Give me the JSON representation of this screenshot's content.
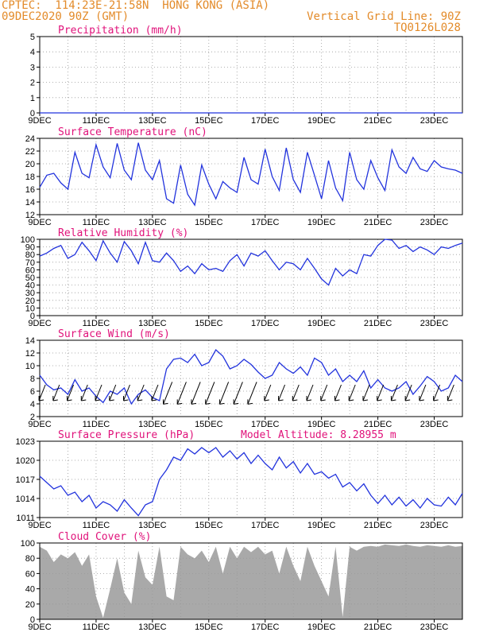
{
  "header": {
    "line1_left": "CPTEC:  114:23E-21:58N  HONG KONG (ASIA)",
    "line2_left": "09DEC2020 90Z (GMT)",
    "line2_right": "Vertical Grid Line: 90Z",
    "line3_right": "TQ0126L028"
  },
  "colors": {
    "line": "#2233dd",
    "title": "#e0127a",
    "header": "#e38b2a",
    "cloud": "#a9a9a9",
    "grid": "#999999"
  },
  "x_ticks": [
    "9DEC",
    "11DEC",
    "13DEC",
    "15DEC",
    "17DEC",
    "19DEC",
    "21DEC",
    "23DEC"
  ],
  "chart_data": [
    {
      "type": "line",
      "title": "Precipitation (mm/h)",
      "ylim": [
        0,
        5
      ],
      "yticks": [
        0,
        1,
        2,
        3,
        4,
        5
      ],
      "x_days": [
        0,
        15
      ],
      "series": [
        {
          "x": [
            0,
            15
          ],
          "values": [
            0,
            0
          ]
        }
      ]
    },
    {
      "type": "line",
      "title": "Surface Temperature (nC)",
      "ylim": [
        12,
        24
      ],
      "yticks": [
        12,
        14,
        16,
        18,
        20,
        22,
        24
      ],
      "x_days": [
        0,
        15
      ],
      "series": [
        {
          "x": [
            0,
            0.25,
            0.5,
            0.75,
            1.0,
            1.25,
            1.5,
            1.75,
            2.0,
            2.25,
            2.5,
            2.75,
            3.0,
            3.25,
            3.5,
            3.75,
            4.0,
            4.25,
            4.5,
            4.75,
            5.0,
            5.25,
            5.5,
            5.75,
            6.0,
            6.25,
            6.5,
            6.75,
            7.0,
            7.25,
            7.5,
            7.75,
            8.0,
            8.25,
            8.5,
            8.75,
            9.0,
            9.25,
            9.5,
            9.75,
            10.0,
            10.25,
            10.5,
            10.75,
            11.0,
            11.25,
            11.5,
            11.75,
            12.0,
            12.25,
            12.5,
            12.75,
            13.0,
            13.25,
            13.5,
            13.75,
            14.0,
            14.25,
            14.5,
            14.75,
            15.0
          ],
          "values": [
            16.3,
            18.2,
            18.5,
            17.0,
            16.0,
            21.8,
            18.5,
            17.8,
            23.0,
            19.5,
            17.8,
            23.2,
            19.0,
            17.5,
            23.3,
            19.0,
            17.5,
            20.5,
            14.5,
            13.8,
            19.8,
            15.2,
            13.5,
            19.8,
            16.8,
            14.5,
            17.2,
            16.2,
            15.5,
            21.0,
            17.5,
            16.8,
            22.3,
            18.0,
            15.8,
            22.5,
            17.5,
            15.5,
            21.8,
            18.2,
            14.5,
            20.5,
            16.2,
            14.2,
            21.8,
            17.5,
            16.0,
            20.5,
            17.8,
            15.8,
            22.2,
            19.5,
            18.5,
            21.0,
            19.2,
            18.8,
            20.5,
            19.5,
            19.2,
            19.0,
            18.5
          ]
        }
      ]
    },
    {
      "type": "line",
      "title": "Relative Humidity (%)",
      "ylim": [
        0,
        100
      ],
      "yticks": [
        0,
        10,
        20,
        30,
        40,
        50,
        60,
        70,
        80,
        90,
        100
      ],
      "x_days": [
        0,
        15
      ],
      "series": [
        {
          "x": [
            0,
            0.25,
            0.5,
            0.75,
            1.0,
            1.25,
            1.5,
            1.75,
            2.0,
            2.25,
            2.5,
            2.75,
            3.0,
            3.25,
            3.5,
            3.75,
            4.0,
            4.25,
            4.5,
            4.75,
            5.0,
            5.25,
            5.5,
            5.75,
            6.0,
            6.25,
            6.5,
            6.75,
            7.0,
            7.25,
            7.5,
            7.75,
            8.0,
            8.25,
            8.5,
            8.75,
            9.0,
            9.25,
            9.5,
            9.75,
            10.0,
            10.25,
            10.5,
            10.75,
            11.0,
            11.25,
            11.5,
            11.75,
            12.0,
            12.25,
            12.5,
            12.75,
            13.0,
            13.25,
            13.5,
            13.75,
            14.0,
            14.25,
            14.5,
            14.75,
            15.0
          ],
          "values": [
            78,
            82,
            88,
            92,
            75,
            80,
            96,
            85,
            72,
            98,
            82,
            70,
            97,
            85,
            68,
            96,
            72,
            70,
            82,
            72,
            58,
            65,
            55,
            68,
            60,
            62,
            58,
            72,
            80,
            65,
            82,
            78,
            85,
            72,
            60,
            70,
            68,
            60,
            75,
            62,
            48,
            40,
            62,
            52,
            60,
            55,
            80,
            78,
            92,
            100,
            99,
            88,
            92,
            84,
            90,
            86,
            80,
            90,
            88,
            92,
            95
          ]
        }
      ]
    },
    {
      "type": "line",
      "title": "Surface Wind (m/s)",
      "ylim": [
        2,
        14
      ],
      "yticks": [
        2,
        4,
        6,
        8,
        10,
        12,
        14
      ],
      "x_days": [
        0,
        15
      ],
      "series": [
        {
          "x": [
            0,
            0.25,
            0.5,
            0.75,
            1.0,
            1.25,
            1.5,
            1.75,
            2.0,
            2.25,
            2.5,
            2.75,
            3.0,
            3.25,
            3.5,
            3.75,
            4.0,
            4.25,
            4.5,
            4.75,
            5.0,
            5.25,
            5.5,
            5.75,
            6.0,
            6.25,
            6.5,
            6.75,
            7.0,
            7.25,
            7.5,
            7.75,
            8.0,
            8.25,
            8.5,
            8.75,
            9.0,
            9.25,
            9.5,
            9.75,
            10.0,
            10.25,
            10.5,
            10.75,
            11.0,
            11.25,
            11.5,
            11.75,
            12.0,
            12.25,
            12.5,
            12.75,
            13.0,
            13.25,
            13.5,
            13.75,
            14.0,
            14.25,
            14.5,
            14.75,
            15.0
          ],
          "values": [
            8.5,
            7.0,
            6.2,
            6.5,
            5.5,
            7.8,
            6.0,
            6.5,
            5.2,
            4.2,
            6.0,
            5.5,
            6.5,
            4.0,
            5.5,
            6.2,
            5.0,
            4.5,
            9.5,
            11.0,
            11.2,
            10.5,
            11.8,
            10.0,
            10.5,
            12.5,
            11.5,
            9.5,
            10.0,
            11.0,
            10.2,
            9.0,
            8.0,
            8.5,
            10.5,
            9.5,
            8.8,
            9.8,
            8.5,
            11.2,
            10.5,
            8.5,
            9.5,
            7.5,
            8.5,
            7.5,
            9.2,
            6.5,
            7.8,
            6.5,
            6.0,
            6.5,
            7.5,
            5.5,
            6.8,
            8.3,
            7.5,
            6.0,
            6.5,
            8.5,
            7.5
          ]
        }
      ],
      "arrows_note": "wind barbs from north-east"
    },
    {
      "type": "line",
      "title": "Surface Pressure (hPa)",
      "annotation": "Model Altitude: 8.28955 m",
      "ylim": [
        1011,
        1023
      ],
      "yticks": [
        1011,
        1014,
        1017,
        1020,
        1023
      ],
      "x_days": [
        0,
        15
      ],
      "series": [
        {
          "x": [
            0,
            0.25,
            0.5,
            0.75,
            1.0,
            1.25,
            1.5,
            1.75,
            2.0,
            2.25,
            2.5,
            2.75,
            3.0,
            3.25,
            3.5,
            3.75,
            4.0,
            4.25,
            4.5,
            4.75,
            5.0,
            5.25,
            5.5,
            5.75,
            6.0,
            6.25,
            6.5,
            6.75,
            7.0,
            7.25,
            7.5,
            7.75,
            8.0,
            8.25,
            8.5,
            8.75,
            9.0,
            9.25,
            9.5,
            9.75,
            10.0,
            10.25,
            10.5,
            10.75,
            11.0,
            11.25,
            11.5,
            11.75,
            12.0,
            12.25,
            12.5,
            12.75,
            13.0,
            13.25,
            13.5,
            13.75,
            14.0,
            14.25,
            14.5,
            14.75,
            15.0
          ],
          "values": [
            1017.5,
            1016.5,
            1015.5,
            1016.0,
            1014.5,
            1015.0,
            1013.5,
            1014.5,
            1012.5,
            1013.5,
            1013.0,
            1012.0,
            1013.8,
            1012.5,
            1011.3,
            1013.0,
            1013.5,
            1017.0,
            1018.5,
            1020.5,
            1020.0,
            1021.8,
            1021.0,
            1022.0,
            1021.2,
            1022.0,
            1020.5,
            1021.5,
            1020.2,
            1021.2,
            1019.5,
            1020.8,
            1019.5,
            1018.5,
            1020.5,
            1018.8,
            1019.8,
            1018.0,
            1019.5,
            1017.8,
            1018.2,
            1017.2,
            1017.8,
            1015.8,
            1016.5,
            1015.2,
            1016.3,
            1014.5,
            1013.2,
            1014.5,
            1013.0,
            1014.2,
            1012.8,
            1013.8,
            1012.5,
            1014.0,
            1013.0,
            1012.8,
            1014.2,
            1013.0,
            1014.8
          ]
        }
      ]
    },
    {
      "type": "area",
      "title": "Cloud Cover (%)",
      "ylim": [
        0,
        100
      ],
      "yticks": [
        0,
        20,
        40,
        60,
        80,
        100
      ],
      "x_days": [
        0,
        15
      ],
      "series": [
        {
          "x": [
            0,
            0.25,
            0.5,
            0.75,
            1.0,
            1.25,
            1.5,
            1.75,
            2.0,
            2.25,
            2.5,
            2.75,
            3.0,
            3.25,
            3.5,
            3.75,
            4.0,
            4.25,
            4.5,
            4.75,
            5.0,
            5.25,
            5.5,
            5.75,
            6.0,
            6.25,
            6.5,
            6.75,
            7.0,
            7.25,
            7.5,
            7.75,
            8.0,
            8.25,
            8.5,
            8.75,
            9.0,
            9.25,
            9.5,
            9.75,
            10.0,
            10.25,
            10.5,
            10.75,
            11.0,
            11.25,
            11.5,
            11.75,
            12.0,
            12.25,
            12.5,
            12.75,
            13.0,
            13.25,
            13.5,
            13.75,
            14.0,
            14.25,
            14.5,
            14.75,
            15.0
          ],
          "values": [
            95,
            90,
            75,
            85,
            80,
            88,
            70,
            85,
            30,
            2,
            40,
            80,
            35,
            20,
            90,
            55,
            45,
            95,
            30,
            25,
            95,
            85,
            80,
            90,
            75,
            95,
            60,
            95,
            80,
            95,
            88,
            95,
            85,
            90,
            60,
            95,
            70,
            50,
            95,
            70,
            50,
            30,
            95,
            3,
            95,
            90,
            95,
            96,
            95,
            98,
            97,
            96,
            98,
            96,
            95,
            97,
            96,
            95,
            97,
            95,
            96
          ]
        }
      ]
    }
  ]
}
